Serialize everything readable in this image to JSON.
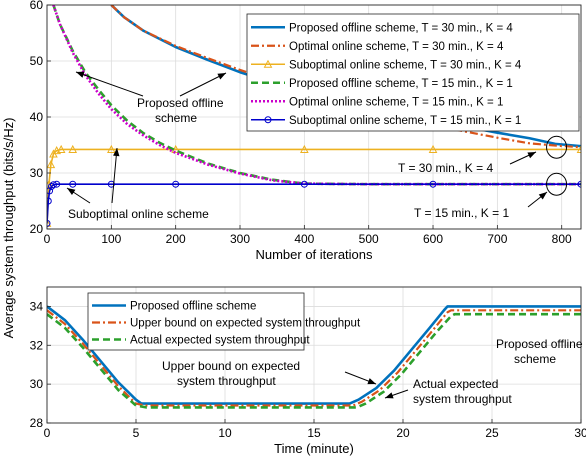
{
  "figure": {
    "shared_ylabel": "Average system throughput (bits/s/Hz)"
  },
  "chart_data": [
    {
      "type": "line",
      "xlabel": "Number of iterations",
      "ylabel": "",
      "xlim": [
        0,
        830
      ],
      "ylim": [
        20,
        60
      ],
      "xticks": [
        0,
        100,
        200,
        300,
        400,
        500,
        600,
        700,
        800
      ],
      "yticks": [
        20,
        30,
        40,
        50,
        60
      ],
      "grid": true,
      "legend_position": "top-right",
      "series": [
        {
          "name": "Proposed offline scheme, T = 30 min., K = 4",
          "color": "#0072BD",
          "style": "solid",
          "points": [
            [
              100,
              60
            ],
            [
              120,
              57.8
            ],
            [
              150,
              55.4
            ],
            [
              200,
              52.5
            ],
            [
              250,
              50.2
            ],
            [
              300,
              48
            ],
            [
              350,
              46.2
            ],
            [
              400,
              44.6
            ],
            [
              450,
              43.2
            ],
            [
              500,
              41.8
            ],
            [
              550,
              40.6
            ],
            [
              600,
              39.4
            ],
            [
              650,
              38.3
            ],
            [
              700,
              37.2
            ],
            [
              750,
              36.2
            ],
            [
              790,
              35.2
            ],
            [
              830,
              34.8
            ]
          ]
        },
        {
          "name": "Optimal online scheme, T = 30 min., K = 4",
          "color": "#D95319",
          "style": "dashdot",
          "points": [
            [
              100,
              60
            ],
            [
              120,
              57.8
            ],
            [
              150,
              55.4
            ],
            [
              200,
              52.7
            ],
            [
              250,
              50.5
            ],
            [
              300,
              48.4
            ],
            [
              350,
              46.5
            ],
            [
              400,
              44.8
            ],
            [
              450,
              43
            ],
            [
              500,
              41.5
            ],
            [
              550,
              40
            ],
            [
              600,
              38.6
            ],
            [
              650,
              37.4
            ],
            [
              700,
              36.3
            ],
            [
              750,
              35.3
            ],
            [
              790,
              34.9
            ],
            [
              830,
              34.6
            ]
          ]
        },
        {
          "name": "Suboptimal online scheme, T = 30 min., K = 4",
          "color": "#EDB120",
          "style": "solid-triangle",
          "points": [
            [
              0,
              21
            ],
            [
              3,
              28
            ],
            [
              6,
              31.5
            ],
            [
              10,
              33.4
            ],
            [
              15,
              34
            ],
            [
              22,
              34.2
            ],
            [
              40,
              34.2
            ],
            [
              100,
              34.2
            ],
            [
              200,
              34.2
            ],
            [
              400,
              34.2
            ],
            [
              600,
              34.2
            ],
            [
              830,
              34.2
            ]
          ]
        },
        {
          "name": "Proposed offline scheme, T = 15 min., K = 1",
          "color": "#2CA02C",
          "style": "dashed",
          "points": [
            [
              10,
              60
            ],
            [
              20,
              56.6
            ],
            [
              40,
              51.8
            ],
            [
              60,
              47.9
            ],
            [
              80,
              44.9
            ],
            [
              100,
              42.1
            ],
            [
              125,
              39.3
            ],
            [
              150,
              37.1
            ],
            [
              175,
              35.4
            ],
            [
              200,
              34
            ],
            [
              250,
              31.7
            ],
            [
              300,
              30
            ],
            [
              350,
              28.8
            ],
            [
              400,
              28.1
            ],
            [
              500,
              28
            ],
            [
              830,
              28
            ]
          ]
        },
        {
          "name": "Optimal online scheme, T = 15 min., K = 1",
          "color": "#CC00CC",
          "style": "dotted",
          "points": [
            [
              10,
              60
            ],
            [
              20,
              56.6
            ],
            [
              40,
              51.5
            ],
            [
              60,
              47.4
            ],
            [
              80,
              44.2
            ],
            [
              100,
              41.4
            ],
            [
              125,
              38.7
            ],
            [
              150,
              36.7
            ],
            [
              175,
              35
            ],
            [
              200,
              33.6
            ],
            [
              250,
              31.5
            ],
            [
              300,
              29.9
            ],
            [
              350,
              28.7
            ],
            [
              400,
              28.1
            ],
            [
              500,
              28
            ],
            [
              830,
              28
            ]
          ]
        },
        {
          "name": "Suboptimal online scheme, T = 15 min., K = 1",
          "color": "#0000CC",
          "style": "solid-circle",
          "points": [
            [
              0,
              21
            ],
            [
              2,
              25
            ],
            [
              4,
              26.8
            ],
            [
              7,
              27.6
            ],
            [
              10,
              27.9
            ],
            [
              15,
              28
            ],
            [
              40,
              28
            ],
            [
              100,
              28
            ],
            [
              200,
              28
            ],
            [
              400,
              28
            ],
            [
              600,
              28
            ],
            [
              830,
              28
            ]
          ]
        }
      ],
      "annotations": [
        {
          "text": "Proposed offline",
          "key": "ann_p1"
        },
        {
          "text": "scheme",
          "key": "ann_p2"
        },
        {
          "text": "Suboptimal online scheme",
          "key": "ann_s"
        },
        {
          "text": "T = 30 min., K = 4",
          "key": "ann_t30"
        },
        {
          "text": "T = 15 min., K = 1",
          "key": "ann_t15"
        }
      ]
    },
    {
      "type": "line",
      "xlabel": "Time (minute)",
      "ylabel": "",
      "xlim": [
        0,
        30
      ],
      "ylim": [
        28,
        35
      ],
      "xticks": [
        0,
        5,
        10,
        15,
        20,
        25,
        30
      ],
      "yticks": [
        28,
        30,
        32,
        34
      ],
      "grid": true,
      "legend_position": "top-left",
      "series": [
        {
          "name": "Proposed offline scheme",
          "color": "#0072BD",
          "style": "solid",
          "points": [
            [
              0,
              34
            ],
            [
              1,
              33.3
            ],
            [
              2,
              32.3
            ],
            [
              3,
              31.2
            ],
            [
              4,
              30.1
            ],
            [
              5,
              29.2
            ],
            [
              5.3,
              29
            ],
            [
              17,
              29
            ],
            [
              17.5,
              29.2
            ],
            [
              18.5,
              29.8
            ],
            [
              19.5,
              30.7
            ],
            [
              20.5,
              31.8
            ],
            [
              21.5,
              32.9
            ],
            [
              22.3,
              33.8
            ],
            [
              22.5,
              34
            ],
            [
              30,
              34
            ]
          ]
        },
        {
          "name": "Upper bound on expected system throughput",
          "color": "#D95319",
          "style": "dashdot",
          "points": [
            [
              0,
              33.8
            ],
            [
              1,
              33.1
            ],
            [
              2,
              32.1
            ],
            [
              3,
              31
            ],
            [
              4,
              29.9
            ],
            [
              5,
              29
            ],
            [
              5.5,
              28.9
            ],
            [
              17.2,
              28.9
            ],
            [
              17.7,
              29.1
            ],
            [
              18.7,
              29.7
            ],
            [
              19.7,
              30.6
            ],
            [
              20.7,
              31.7
            ],
            [
              21.7,
              32.8
            ],
            [
              22.5,
              33.7
            ],
            [
              22.7,
              33.8
            ],
            [
              30,
              33.8
            ]
          ]
        },
        {
          "name": "Actual expected system throughput",
          "color": "#2CA02C",
          "style": "dashed",
          "points": [
            [
              0,
              33.6
            ],
            [
              1,
              32.9
            ],
            [
              2,
              31.9
            ],
            [
              3,
              30.8
            ],
            [
              4,
              29.7
            ],
            [
              5,
              28.9
            ],
            [
              5.6,
              28.8
            ],
            [
              17.4,
              28.8
            ],
            [
              17.9,
              29
            ],
            [
              18.9,
              29.6
            ],
            [
              19.9,
              30.5
            ],
            [
              20.9,
              31.6
            ],
            [
              21.9,
              32.7
            ],
            [
              22.7,
              33.5
            ],
            [
              22.9,
              33.6
            ],
            [
              30,
              33.6
            ]
          ]
        }
      ],
      "annotations": [
        {
          "text": "Upper bound on expected",
          "key": "ann_u1"
        },
        {
          "text": "system throughput",
          "key": "ann_u2"
        },
        {
          "text": "Actual expected",
          "key": "ann_a1"
        },
        {
          "text": "system throughput",
          "key": "ann_a2"
        },
        {
          "text": "Proposed offline",
          "key": "ann_o1"
        },
        {
          "text": "scheme",
          "key": "ann_o2"
        }
      ]
    }
  ]
}
